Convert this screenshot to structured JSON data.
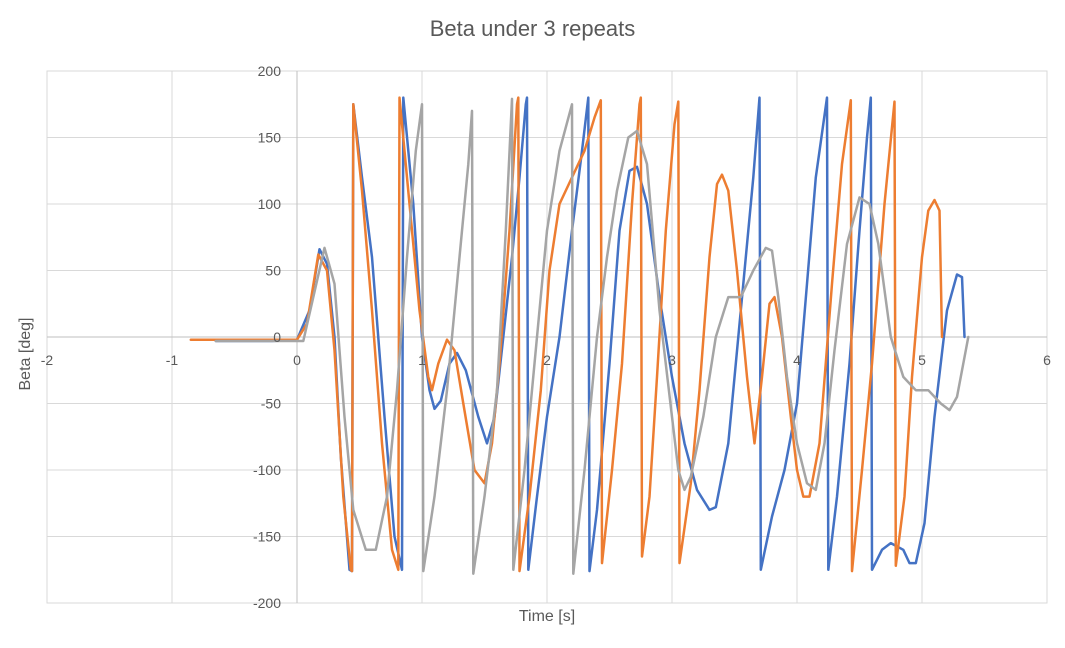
{
  "chart_data": {
    "type": "line",
    "title": "Beta under 3 repeats",
    "xlabel": "Time [s]",
    "ylabel": "Beta [deg]",
    "xlim": [
      -2,
      6
    ],
    "ylim": [
      -200,
      200
    ],
    "xticks": [
      -2,
      -1,
      0,
      1,
      2,
      3,
      4,
      5,
      6
    ],
    "yticks": [
      -200,
      -150,
      -100,
      -50,
      0,
      50,
      100,
      150,
      200
    ],
    "grid": true,
    "legend": "none",
    "series": [
      {
        "color": "#4472C4",
        "points": [
          [
            -0.65,
            -3
          ],
          [
            -0.2,
            -3
          ],
          [
            0,
            -2
          ],
          [
            0.1,
            20
          ],
          [
            0.18,
            66
          ],
          [
            0.24,
            55
          ],
          [
            0.3,
            0
          ],
          [
            0.35,
            -90
          ],
          [
            0.42,
            -175
          ],
          [
            0.44,
            -176
          ],
          [
            0.45,
            175
          ],
          [
            0.52,
            120
          ],
          [
            0.6,
            60
          ],
          [
            0.7,
            -60
          ],
          [
            0.78,
            -150
          ],
          [
            0.84,
            -175
          ],
          [
            0.85,
            180
          ],
          [
            0.93,
            100
          ],
          [
            1.0,
            0
          ],
          [
            1.06,
            -40
          ],
          [
            1.1,
            -54
          ],
          [
            1.15,
            -48
          ],
          [
            1.22,
            -20
          ],
          [
            1.28,
            -12
          ],
          [
            1.35,
            -25
          ],
          [
            1.45,
            -60
          ],
          [
            1.52,
            -80
          ],
          [
            1.58,
            -60
          ],
          [
            1.65,
            0
          ],
          [
            1.72,
            60
          ],
          [
            1.78,
            120
          ],
          [
            1.83,
            175
          ],
          [
            1.84,
            180
          ],
          [
            1.85,
            -175
          ],
          [
            1.92,
            -120
          ],
          [
            2.0,
            -60
          ],
          [
            2.1,
            0
          ],
          [
            2.2,
            80
          ],
          [
            2.28,
            140
          ],
          [
            2.33,
            180
          ],
          [
            2.34,
            -176
          ],
          [
            2.4,
            -130
          ],
          [
            2.5,
            -20
          ],
          [
            2.58,
            80
          ],
          [
            2.66,
            125
          ],
          [
            2.72,
            128
          ],
          [
            2.8,
            100
          ],
          [
            2.9,
            30
          ],
          [
            3.0,
            -30
          ],
          [
            3.1,
            -80
          ],
          [
            3.2,
            -115
          ],
          [
            3.3,
            -130
          ],
          [
            3.35,
            -128
          ],
          [
            3.45,
            -80
          ],
          [
            3.55,
            20
          ],
          [
            3.65,
            120
          ],
          [
            3.7,
            180
          ],
          [
            3.71,
            -175
          ],
          [
            3.8,
            -135
          ],
          [
            3.9,
            -100
          ],
          [
            4.0,
            -50
          ],
          [
            4.08,
            40
          ],
          [
            4.15,
            120
          ],
          [
            4.24,
            180
          ],
          [
            4.25,
            -175
          ],
          [
            4.32,
            -120
          ],
          [
            4.42,
            -20
          ],
          [
            4.5,
            80
          ],
          [
            4.56,
            150
          ],
          [
            4.59,
            180
          ],
          [
            4.6,
            -175
          ],
          [
            4.68,
            -160
          ],
          [
            4.75,
            -155
          ],
          [
            4.85,
            -160
          ],
          [
            4.9,
            -170
          ],
          [
            4.95,
            -170
          ],
          [
            5.02,
            -140
          ],
          [
            5.1,
            -60
          ],
          [
            5.2,
            20
          ],
          [
            5.28,
            47
          ],
          [
            5.32,
            45
          ],
          [
            5.34,
            0
          ]
        ]
      },
      {
        "color": "#ED7D31",
        "points": [
          [
            -0.85,
            -2
          ],
          [
            -0.2,
            -2
          ],
          [
            0,
            -2
          ],
          [
            0.08,
            10
          ],
          [
            0.17,
            62
          ],
          [
            0.24,
            50
          ],
          [
            0.3,
            -10
          ],
          [
            0.37,
            -120
          ],
          [
            0.43,
            -175
          ],
          [
            0.44,
            -176
          ],
          [
            0.45,
            175
          ],
          [
            0.52,
            110
          ],
          [
            0.6,
            20
          ],
          [
            0.68,
            -80
          ],
          [
            0.76,
            -160
          ],
          [
            0.81,
            -175
          ],
          [
            0.82,
            180
          ],
          [
            0.9,
            100
          ],
          [
            0.98,
            20
          ],
          [
            1.05,
            -30
          ],
          [
            1.08,
            -40
          ],
          [
            1.13,
            -20
          ],
          [
            1.2,
            -2
          ],
          [
            1.26,
            -10
          ],
          [
            1.33,
            -50
          ],
          [
            1.42,
            -100
          ],
          [
            1.5,
            -110
          ],
          [
            1.56,
            -80
          ],
          [
            1.62,
            -20
          ],
          [
            1.7,
            80
          ],
          [
            1.76,
            175
          ],
          [
            1.77,
            180
          ],
          [
            1.78,
            -176
          ],
          [
            1.86,
            -120
          ],
          [
            1.95,
            -40
          ],
          [
            2.02,
            50
          ],
          [
            2.1,
            100
          ],
          [
            2.2,
            120
          ],
          [
            2.3,
            140
          ],
          [
            2.38,
            165
          ],
          [
            2.43,
            178
          ],
          [
            2.44,
            -170
          ],
          [
            2.52,
            -100
          ],
          [
            2.6,
            -20
          ],
          [
            2.68,
            100
          ],
          [
            2.74,
            175
          ],
          [
            2.75,
            180
          ],
          [
            2.76,
            -165
          ],
          [
            2.82,
            -120
          ],
          [
            2.88,
            -30
          ],
          [
            2.95,
            80
          ],
          [
            3.02,
            160
          ],
          [
            3.05,
            177
          ],
          [
            3.06,
            -170
          ],
          [
            3.15,
            -110
          ],
          [
            3.22,
            -40
          ],
          [
            3.3,
            60
          ],
          [
            3.36,
            115
          ],
          [
            3.4,
            122
          ],
          [
            3.45,
            110
          ],
          [
            3.52,
            50
          ],
          [
            3.6,
            -30
          ],
          [
            3.66,
            -80
          ],
          [
            3.72,
            -30
          ],
          [
            3.78,
            25
          ],
          [
            3.82,
            30
          ],
          [
            3.88,
            0
          ],
          [
            3.95,
            -60
          ],
          [
            4.0,
            -100
          ],
          [
            4.05,
            -120
          ],
          [
            4.1,
            -120
          ],
          [
            4.18,
            -80
          ],
          [
            4.28,
            40
          ],
          [
            4.36,
            130
          ],
          [
            4.43,
            178
          ],
          [
            4.44,
            -176
          ],
          [
            4.52,
            -100
          ],
          [
            4.6,
            -20
          ],
          [
            4.7,
            100
          ],
          [
            4.78,
            177
          ],
          [
            4.79,
            -172
          ],
          [
            4.86,
            -120
          ],
          [
            4.92,
            -30
          ],
          [
            5.0,
            60
          ],
          [
            5.05,
            95
          ],
          [
            5.1,
            103
          ],
          [
            5.14,
            95
          ],
          [
            5.16,
            0
          ]
        ]
      },
      {
        "color": "#A5A5A5",
        "points": [
          [
            -0.65,
            -3
          ],
          [
            -0.1,
            -3
          ],
          [
            0,
            -3
          ],
          [
            0.05,
            -3
          ],
          [
            0.13,
            30
          ],
          [
            0.22,
            67
          ],
          [
            0.3,
            40
          ],
          [
            0.38,
            -60
          ],
          [
            0.45,
            -130
          ],
          [
            0.55,
            -160
          ],
          [
            0.63,
            -160
          ],
          [
            0.72,
            -120
          ],
          [
            0.8,
            -40
          ],
          [
            0.88,
            60
          ],
          [
            0.95,
            140
          ],
          [
            1.0,
            175
          ],
          [
            1.01,
            -176
          ],
          [
            1.1,
            -120
          ],
          [
            1.2,
            -40
          ],
          [
            1.3,
            60
          ],
          [
            1.37,
            130
          ],
          [
            1.4,
            170
          ],
          [
            1.41,
            -178
          ],
          [
            1.5,
            -120
          ],
          [
            1.6,
            -40
          ],
          [
            1.67,
            80
          ],
          [
            1.72,
            179
          ],
          [
            1.73,
            -175
          ],
          [
            1.82,
            -100
          ],
          [
            1.92,
            0
          ],
          [
            2.0,
            80
          ],
          [
            2.1,
            140
          ],
          [
            2.2,
            175
          ],
          [
            2.21,
            -178
          ],
          [
            2.3,
            -100
          ],
          [
            2.4,
            0
          ],
          [
            2.48,
            60
          ],
          [
            2.56,
            110
          ],
          [
            2.65,
            150
          ],
          [
            2.72,
            155
          ],
          [
            2.8,
            130
          ],
          [
            2.9,
            20
          ],
          [
            3.0,
            -60
          ],
          [
            3.05,
            -100
          ],
          [
            3.1,
            -115
          ],
          [
            3.15,
            -105
          ],
          [
            3.25,
            -60
          ],
          [
            3.35,
            0
          ],
          [
            3.45,
            30
          ],
          [
            3.55,
            30
          ],
          [
            3.65,
            50
          ],
          [
            3.75,
            67
          ],
          [
            3.8,
            65
          ],
          [
            3.85,
            30
          ],
          [
            3.92,
            -30
          ],
          [
            4.0,
            -80
          ],
          [
            4.08,
            -110
          ],
          [
            4.15,
            -115
          ],
          [
            4.22,
            -80
          ],
          [
            4.3,
            -10
          ],
          [
            4.4,
            70
          ],
          [
            4.5,
            105
          ],
          [
            4.58,
            100
          ],
          [
            4.65,
            70
          ],
          [
            4.75,
            0
          ],
          [
            4.85,
            -30
          ],
          [
            4.95,
            -40
          ],
          [
            5.05,
            -40
          ],
          [
            5.15,
            -50
          ],
          [
            5.22,
            -55
          ],
          [
            5.28,
            -45
          ],
          [
            5.35,
            -10
          ],
          [
            5.37,
            0
          ]
        ]
      }
    ]
  }
}
